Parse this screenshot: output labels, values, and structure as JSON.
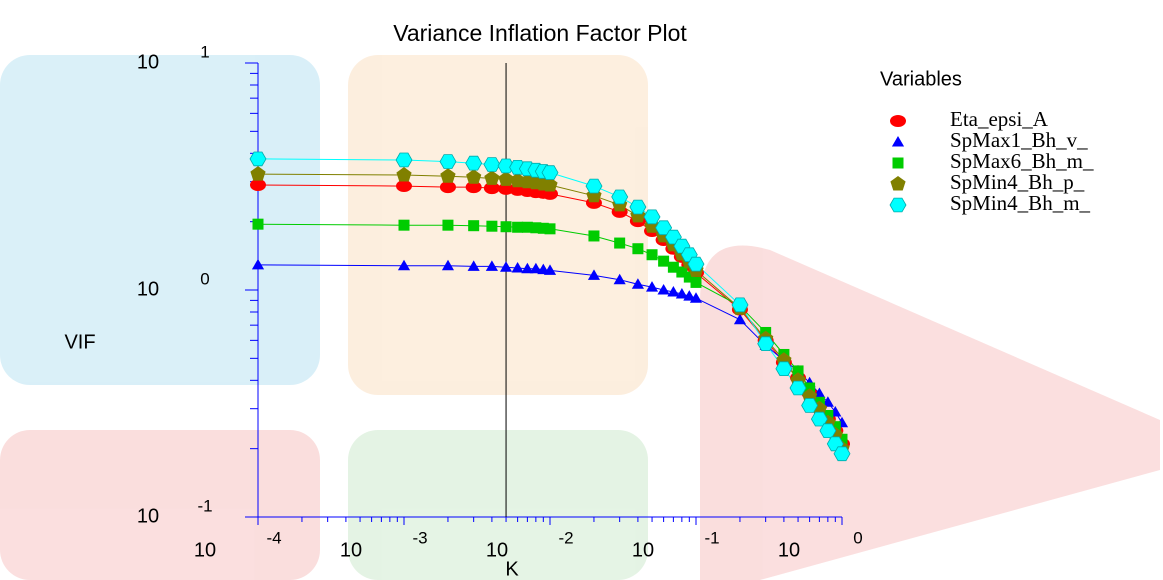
{
  "chart_data": {
    "type": "line",
    "title": "Variance Inflation Factor Plot",
    "x_label": "K",
    "y_label": "VIF",
    "legend_title": "Variables",
    "legend": "upper right",
    "log_x": true,
    "log_y": true,
    "xlim": [
      0.0001,
      1
    ],
    "ylim": [
      0.1,
      10
    ],
    "xticks": [
      {
        "value": 0.0001,
        "label": "10",
        "exponent": "-4"
      },
      {
        "value": 0.001,
        "label": "10",
        "exponent": "-3"
      },
      {
        "value": 0.01,
        "label": "10",
        "exponent": "-2"
      },
      {
        "value": 0.1,
        "label": "10",
        "exponent": "-1"
      },
      {
        "value": 1,
        "label": "10",
        "exponent": "0"
      }
    ],
    "yticks": [
      {
        "value": 0.1,
        "label": "10",
        "exponent": "-1"
      },
      {
        "value": 1,
        "label": "10",
        "exponent": "0"
      },
      {
        "value": 10,
        "label": "10",
        "exponent": "1"
      }
    ],
    "xminorticks": [
      0.0002,
      0.0003,
      0.0004,
      0.0005,
      0.0006,
      0.0007,
      0.0008,
      0.0009,
      0.002,
      0.003,
      0.004,
      0.005,
      0.006,
      0.007,
      0.008,
      0.009,
      0.02,
      0.03,
      0.04,
      0.05,
      0.06,
      0.07,
      0.08,
      0.09,
      0.2,
      0.3,
      0.4,
      0.5,
      0.6,
      0.7,
      0.8,
      0.9
    ],
    "yminorticks": [
      0.2,
      0.3,
      0.4,
      0.5,
      0.6,
      0.7,
      0.8,
      0.9,
      2,
      3,
      4,
      5,
      6,
      7,
      8,
      9
    ],
    "reference_line_x": 0.005,
    "x": [
      0.0001,
      0.001,
      0.002,
      0.003,
      0.004,
      0.005,
      0.006,
      0.007,
      0.008,
      0.009,
      0.01,
      0.02,
      0.03,
      0.04,
      0.05,
      0.06,
      0.07,
      0.08,
      0.09,
      0.1,
      0.2,
      0.3,
      0.4,
      0.5,
      0.6,
      0.7,
      0.8,
      0.9,
      1.0
    ],
    "series": [
      {
        "name": "Eta_epsi_A",
        "color": "#ff0000",
        "marker": "ellipse",
        "values": [
          2.9,
          2.87,
          2.84,
          2.84,
          2.81,
          2.79,
          2.76,
          2.73,
          2.7,
          2.68,
          2.65,
          2.42,
          2.21,
          2.01,
          1.82,
          1.66,
          1.52,
          1.4,
          1.29,
          1.19,
          0.82,
          0.6,
          0.48,
          0.41,
          0.35,
          0.31,
          0.27,
          0.24,
          0.21
        ]
      },
      {
        "name": "SpMax1_Bh_v_",
        "color": "#0000ff",
        "marker": "triangle",
        "values": [
          1.29,
          1.28,
          1.28,
          1.27,
          1.27,
          1.26,
          1.25,
          1.24,
          1.24,
          1.23,
          1.22,
          1.16,
          1.11,
          1.06,
          1.03,
          1.0,
          0.98,
          0.96,
          0.94,
          0.92,
          0.74,
          0.57,
          0.49,
          0.44,
          0.39,
          0.35,
          0.32,
          0.29,
          0.26
        ]
      },
      {
        "name": "SpMax6_Bh_m_",
        "color": "#00cc00",
        "marker": "square",
        "values": [
          1.95,
          1.93,
          1.93,
          1.92,
          1.91,
          1.9,
          1.89,
          1.89,
          1.88,
          1.87,
          1.86,
          1.73,
          1.61,
          1.52,
          1.43,
          1.34,
          1.26,
          1.2,
          1.14,
          1.08,
          0.85,
          0.65,
          0.52,
          0.44,
          0.37,
          0.32,
          0.28,
          0.25,
          0.22
        ]
      },
      {
        "name": "SpMin4_Bh_p_",
        "color": "#808000",
        "marker": "pentagon",
        "values": [
          3.24,
          3.21,
          3.17,
          3.14,
          3.1,
          3.07,
          3.03,
          3.0,
          2.97,
          2.93,
          2.9,
          2.6,
          2.37,
          2.12,
          1.91,
          1.73,
          1.58,
          1.44,
          1.33,
          1.22,
          0.83,
          0.61,
          0.49,
          0.4,
          0.34,
          0.3,
          0.26,
          0.23,
          0.2
        ]
      },
      {
        "name": "SpMin4_Bh_m_",
        "color": "#00ffff",
        "marker": "hexagon",
        "values": [
          3.78,
          3.74,
          3.68,
          3.62,
          3.57,
          3.52,
          3.47,
          3.42,
          3.37,
          3.33,
          3.29,
          2.87,
          2.57,
          2.32,
          2.1,
          1.88,
          1.71,
          1.56,
          1.43,
          1.3,
          0.86,
          0.58,
          0.45,
          0.37,
          0.31,
          0.27,
          0.24,
          0.21,
          0.19
        ]
      }
    ]
  }
}
